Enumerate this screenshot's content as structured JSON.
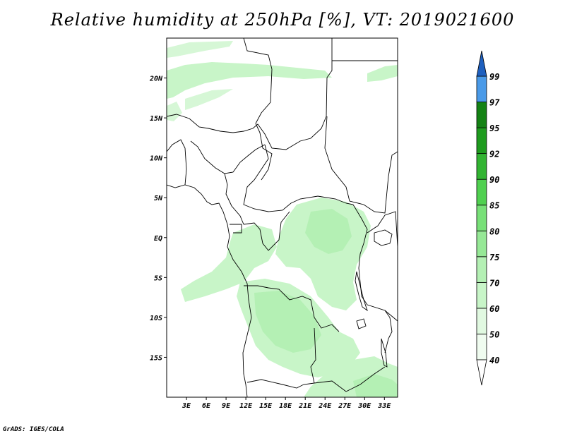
{
  "title": "Relative humidity at 250hPa [%], VT: 2019021600",
  "credit": "GrADS: IGES/COLA",
  "map": {
    "lon_range": [
      0,
      35
    ],
    "lat_range": [
      -20,
      25
    ],
    "lat_ticks": [
      {
        "lat": 20,
        "label": "20N"
      },
      {
        "lat": 15,
        "label": "15N"
      },
      {
        "lat": 10,
        "label": "10N"
      },
      {
        "lat": 5,
        "label": "5N"
      },
      {
        "lat": 0,
        "label": "EQ"
      },
      {
        "lat": -5,
        "label": "5S"
      },
      {
        "lat": -10,
        "label": "10S"
      },
      {
        "lat": -15,
        "label": "15S"
      }
    ],
    "lon_ticks": [
      {
        "lon": 3,
        "label": "3E"
      },
      {
        "lon": 6,
        "label": "6E"
      },
      {
        "lon": 9,
        "label": "9E"
      },
      {
        "lon": 12,
        "label": "12E"
      },
      {
        "lon": 15,
        "label": "15E"
      },
      {
        "lon": 18,
        "label": "18E"
      },
      {
        "lon": 21,
        "label": "21E"
      },
      {
        "lon": 24,
        "label": "24E"
      },
      {
        "lon": 27,
        "label": "27E"
      },
      {
        "lon": 30,
        "label": "30E"
      },
      {
        "lon": 33,
        "label": "33E"
      }
    ]
  },
  "colorbar": {
    "levels": [
      {
        "label": "40",
        "color": "#f0fcf0"
      },
      {
        "label": "50",
        "color": "#e1f9e1"
      },
      {
        "label": "60",
        "color": "#c8f5c8"
      },
      {
        "label": "70",
        "color": "#b4f0b4"
      },
      {
        "label": "75",
        "color": "#96e896"
      },
      {
        "label": "80",
        "color": "#78e078"
      },
      {
        "label": "85",
        "color": "#50d050"
      },
      {
        "label": "90",
        "color": "#32b432"
      },
      {
        "label": "92",
        "color": "#1e9b1e"
      },
      {
        "label": "95",
        "color": "#148214"
      },
      {
        "label": "97",
        "color": "#4a9ae8"
      },
      {
        "label": "99",
        "color": "#2e78d8"
      }
    ],
    "top_color": "#1e5fbe",
    "bottom_color": "#ffffff"
  },
  "colors": {
    "humidity_light": "#c8f5c8",
    "humidity_mid": "#b4f0b4",
    "border": "#000000"
  }
}
